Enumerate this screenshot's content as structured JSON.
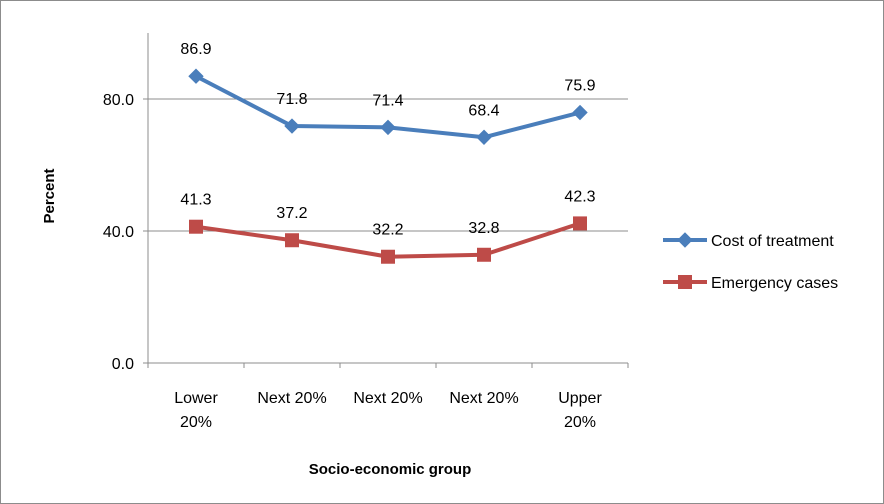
{
  "chart_data": {
    "type": "line",
    "title": "",
    "xlabel": "Socio-economic group",
    "ylabel": "Percent",
    "categories": [
      [
        "Lower",
        "20%"
      ],
      [
        "Next 20%"
      ],
      [
        "Next 20%"
      ],
      [
        "Next 20%"
      ],
      [
        "Upper",
        "20%"
      ]
    ],
    "ylim": [
      0,
      100
    ],
    "yticks": [
      "0.0",
      "40.0",
      "80.0"
    ],
    "ytick_values": [
      0,
      40,
      80
    ],
    "grid": true,
    "legend_position": "right",
    "series": [
      {
        "name": "Cost of treatment",
        "values": [
          86.9,
          71.8,
          71.4,
          68.4,
          75.9
        ],
        "labels": [
          "86.9",
          "71.8",
          "71.4",
          "68.4",
          "75.9"
        ],
        "color": "#4a7ebb",
        "marker": "diamond"
      },
      {
        "name": "Emergency cases",
        "values": [
          41.3,
          37.2,
          32.2,
          32.8,
          42.3
        ],
        "labels": [
          "41.3",
          "37.2",
          "32.2",
          "32.8",
          "42.3"
        ],
        "color": "#be4b48",
        "marker": "square"
      }
    ]
  }
}
